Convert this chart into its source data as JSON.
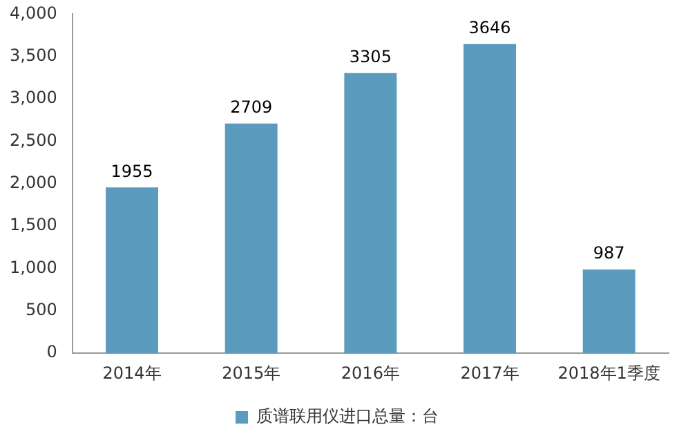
{
  "chart_data": {
    "type": "bar",
    "categories": [
      "2014年",
      "2015年",
      "2016年",
      "2017年",
      "2018年1季度"
    ],
    "series": [
      {
        "name": "质谱联用仪进口总量：台",
        "color": "#5b9bbd",
        "values": [
          1955,
          2709,
          3305,
          3646,
          987
        ]
      }
    ],
    "ylim": [
      0,
      4000
    ],
    "yticks": [
      {
        "value": 0,
        "label": "0"
      },
      {
        "value": 500,
        "label": "500"
      },
      {
        "value": 1000,
        "label": "1,000"
      },
      {
        "value": 1500,
        "label": "1,500"
      },
      {
        "value": 2000,
        "label": "2,000"
      },
      {
        "value": 2500,
        "label": "2,500"
      },
      {
        "value": 3000,
        "label": "3,000"
      },
      {
        "value": 3500,
        "label": "3,500"
      },
      {
        "value": 4000,
        "label": "4,000"
      }
    ],
    "data_labels": true,
    "legend": "bottom",
    "grid": false
  }
}
